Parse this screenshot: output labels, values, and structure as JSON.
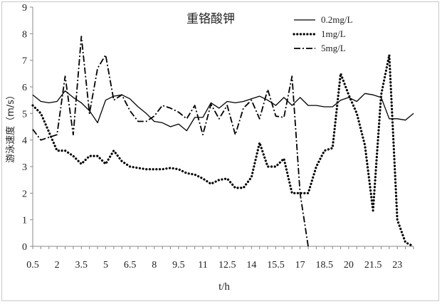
{
  "chart_data": {
    "type": "line",
    "title": "重铬酸钾",
    "xlabel": "t/h",
    "ylabel": "游泳速度（m/s）",
    "ylim": [
      0,
      9
    ],
    "yticks": [
      "0",
      "1",
      "2",
      "3",
      "4",
      "5",
      "6",
      "7",
      "8",
      "9"
    ],
    "xticks": [
      "0.5",
      "2",
      "3.5",
      "5",
      "6.5",
      "8",
      "9.5",
      "11",
      "12.5",
      "14",
      "15.5",
      "17",
      "18.5",
      "20",
      "21.5",
      "23"
    ],
    "legend_position": "top-right",
    "series": [
      {
        "name": "0.2mg/L",
        "style": "solid",
        "x": [
          0.5,
          1.0,
          1.5,
          2.0,
          2.5,
          3.0,
          3.5,
          4.0,
          4.5,
          5.0,
          5.5,
          6.0,
          6.5,
          7.0,
          7.5,
          8.0,
          8.5,
          9.0,
          9.5,
          10.0,
          10.5,
          11.0,
          11.5,
          12.0,
          12.5,
          13.0,
          13.5,
          14.0,
          14.5,
          15.0,
          15.5,
          16.0,
          16.5,
          17.0,
          17.5,
          18.0,
          18.5,
          19.0,
          19.5,
          20.0,
          20.5,
          21.0,
          21.5,
          22.0,
          22.5,
          23.0,
          23.5,
          24.0
        ],
        "values": [
          5.7,
          5.45,
          5.4,
          5.45,
          5.85,
          5.6,
          5.4,
          5.1,
          4.65,
          5.5,
          5.65,
          5.7,
          5.55,
          5.25,
          5.0,
          4.7,
          4.65,
          4.5,
          4.6,
          4.35,
          4.85,
          4.85,
          5.4,
          5.2,
          5.45,
          5.4,
          5.45,
          5.55,
          5.65,
          5.5,
          5.3,
          5.6,
          5.3,
          5.6,
          5.3,
          5.3,
          5.25,
          5.25,
          5.5,
          5.6,
          5.45,
          5.75,
          5.7,
          5.6,
          4.8,
          4.8,
          4.75,
          5.0
        ]
      },
      {
        "name": "1mg/L",
        "style": "dotted",
        "x": [
          0.5,
          1.0,
          1.5,
          2.0,
          2.5,
          3.0,
          3.5,
          4.0,
          4.5,
          5.0,
          5.5,
          6.0,
          6.5,
          7.0,
          7.5,
          8.0,
          8.5,
          9.0,
          9.5,
          10.0,
          10.5,
          11.0,
          11.5,
          12.0,
          12.5,
          13.0,
          13.5,
          14.0,
          14.5,
          15.0,
          15.5,
          16.0,
          16.5,
          17.0,
          17.5,
          18.0,
          18.5,
          19.0,
          19.5,
          20.0,
          20.5,
          21.0,
          21.5,
          22.0,
          22.5,
          23.0,
          23.5,
          24.0
        ],
        "values": [
          5.3,
          5.0,
          4.3,
          3.6,
          3.6,
          3.4,
          3.1,
          3.4,
          3.4,
          3.1,
          3.6,
          3.2,
          3.0,
          2.95,
          2.9,
          2.9,
          2.9,
          2.95,
          2.9,
          2.75,
          2.7,
          2.55,
          2.35,
          2.5,
          2.55,
          2.2,
          2.2,
          2.6,
          3.9,
          3.0,
          3.0,
          3.3,
          2.0,
          2.0,
          2.0,
          3.0,
          3.6,
          3.7,
          6.5,
          5.7,
          5.0,
          3.8,
          1.35,
          5.7,
          7.2,
          1.0,
          0.15,
          0.0
        ]
      },
      {
        "name": "5mg/L",
        "style": "dash-dot",
        "x": [
          0.5,
          1.0,
          1.5,
          2.0,
          2.5,
          3.0,
          3.5,
          4.0,
          4.5,
          5.0,
          5.5,
          6.0,
          6.5,
          7.0,
          7.5,
          8.0,
          8.5,
          9.0,
          9.5,
          10.0,
          10.5,
          11.0,
          11.5,
          12.0,
          12.5,
          13.0,
          13.5,
          14.0,
          14.5,
          15.0,
          15.5,
          16.0,
          16.5,
          17.0,
          17.5
        ],
        "values": [
          4.4,
          4.0,
          4.1,
          4.2,
          6.4,
          4.2,
          7.9,
          5.0,
          6.7,
          7.2,
          5.5,
          5.7,
          5.1,
          4.7,
          4.7,
          4.9,
          5.3,
          5.2,
          5.05,
          4.8,
          5.3,
          4.2,
          5.35,
          4.8,
          5.3,
          4.2,
          5.2,
          5.5,
          4.8,
          5.9,
          4.9,
          4.85,
          6.4,
          2.0,
          0.0
        ]
      }
    ]
  }
}
